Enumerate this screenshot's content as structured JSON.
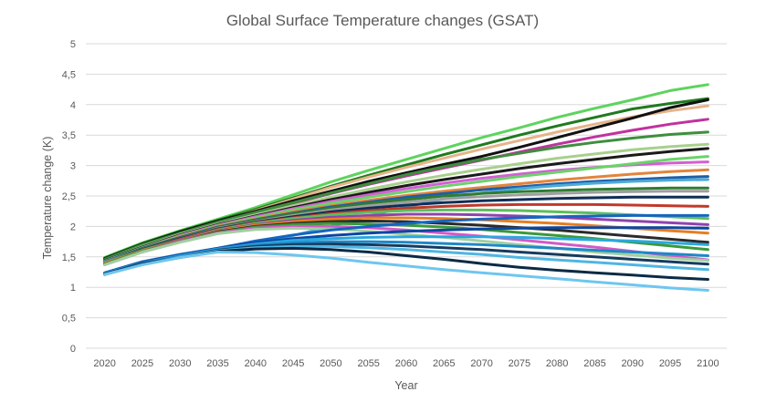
{
  "chart_data": {
    "type": "line",
    "title": "Global Surface Temperature changes (GSAT)",
    "xlabel": "Year",
    "ylabel": "Temperature change (K)",
    "x": [
      "2020",
      "2025",
      "2030",
      "2035",
      "2040",
      "2045",
      "2050",
      "2055",
      "2060",
      "2065",
      "2070",
      "2075",
      "2080",
      "2085",
      "2090",
      "2095",
      "2100"
    ],
    "yticks": [
      "0",
      "0,5",
      "1",
      "1,5",
      "2",
      "2,5",
      "3",
      "3,5",
      "4",
      "4,5",
      "5"
    ],
    "ylim": [
      0,
      5
    ],
    "grid": true,
    "legend": "none",
    "series": [
      {
        "color": "#5ed35e",
        "values": [
          1.49,
          1.73,
          1.93,
          2.12,
          2.31,
          2.52,
          2.73,
          2.92,
          3.1,
          3.28,
          3.46,
          3.62,
          3.79,
          3.94,
          4.08,
          4.23,
          4.33
        ]
      },
      {
        "color": "#1f7a1f",
        "values": [
          1.48,
          1.72,
          1.92,
          2.1,
          2.28,
          2.47,
          2.66,
          2.84,
          3.01,
          3.18,
          3.34,
          3.5,
          3.65,
          3.79,
          3.93,
          4.02,
          4.1
        ]
      },
      {
        "color": "#e6b48a",
        "values": [
          1.46,
          1.7,
          1.9,
          2.08,
          2.26,
          2.45,
          2.64,
          2.81,
          2.97,
          3.12,
          3.27,
          3.41,
          3.55,
          3.68,
          3.8,
          3.9,
          3.98
        ]
      },
      {
        "color": "#111111",
        "values": [
          1.47,
          1.71,
          1.91,
          2.09,
          2.25,
          2.42,
          2.58,
          2.74,
          2.88,
          3.02,
          3.15,
          3.3,
          3.46,
          3.62,
          3.78,
          3.95,
          4.08
        ]
      },
      {
        "color": "#c0329e",
        "values": [
          1.45,
          1.69,
          1.88,
          2.06,
          2.22,
          2.38,
          2.54,
          2.69,
          2.83,
          2.96,
          3.09,
          3.22,
          3.35,
          3.47,
          3.58,
          3.68,
          3.76
        ]
      },
      {
        "color": "#3e8e3e",
        "values": [
          1.46,
          1.7,
          1.89,
          2.07,
          2.23,
          2.39,
          2.55,
          2.7,
          2.85,
          2.98,
          3.1,
          3.2,
          3.3,
          3.38,
          3.45,
          3.51,
          3.55
        ]
      },
      {
        "color": "#a8d08d",
        "values": [
          1.44,
          1.67,
          1.87,
          2.04,
          2.19,
          2.34,
          2.48,
          2.61,
          2.73,
          2.84,
          2.94,
          3.03,
          3.12,
          3.19,
          3.26,
          3.31,
          3.35
        ]
      },
      {
        "color": "#1a1a1a",
        "values": [
          1.44,
          1.66,
          1.86,
          2.03,
          2.17,
          2.31,
          2.44,
          2.56,
          2.67,
          2.77,
          2.86,
          2.95,
          3.03,
          3.1,
          3.17,
          3.23,
          3.28
        ]
      },
      {
        "color": "#d45fd4",
        "values": [
          1.43,
          1.65,
          1.85,
          2.02,
          2.16,
          2.29,
          2.41,
          2.52,
          2.62,
          2.71,
          2.79,
          2.86,
          2.92,
          2.97,
          3.01,
          3.04,
          3.06
        ]
      },
      {
        "color": "#6ad36a",
        "values": [
          1.43,
          1.65,
          1.84,
          2.01,
          2.14,
          2.27,
          2.38,
          2.48,
          2.57,
          2.66,
          2.74,
          2.82,
          2.89,
          2.96,
          3.03,
          3.1,
          3.15
        ]
      },
      {
        "color": "#e3843c",
        "values": [
          1.42,
          1.64,
          1.83,
          2.0,
          2.12,
          2.24,
          2.34,
          2.43,
          2.51,
          2.58,
          2.64,
          2.7,
          2.76,
          2.81,
          2.86,
          2.9,
          2.93
        ]
      },
      {
        "color": "#1f5fa8",
        "values": [
          1.42,
          1.64,
          1.82,
          1.99,
          2.11,
          2.22,
          2.32,
          2.4,
          2.48,
          2.54,
          2.6,
          2.65,
          2.7,
          2.74,
          2.77,
          2.8,
          2.82
        ]
      },
      {
        "color": "#4dabd6",
        "values": [
          1.22,
          1.4,
          1.52,
          1.62,
          1.72,
          1.85,
          2.0,
          2.17,
          2.32,
          2.45,
          2.55,
          2.62,
          2.67,
          2.71,
          2.74,
          2.76,
          2.77
        ]
      },
      {
        "color": "#2e7d32",
        "values": [
          1.41,
          1.63,
          1.81,
          1.98,
          2.1,
          2.21,
          2.3,
          2.38,
          2.44,
          2.5,
          2.54,
          2.57,
          2.59,
          2.61,
          2.62,
          2.63,
          2.63
        ]
      },
      {
        "color": "#9e9e9e",
        "values": [
          1.41,
          1.62,
          1.8,
          1.97,
          2.08,
          2.18,
          2.27,
          2.34,
          2.4,
          2.45,
          2.49,
          2.52,
          2.54,
          2.56,
          2.57,
          2.58,
          2.58
        ]
      },
      {
        "color": "#0f2f57",
        "values": [
          1.4,
          1.62,
          1.8,
          1.96,
          2.07,
          2.16,
          2.24,
          2.3,
          2.35,
          2.39,
          2.42,
          2.44,
          2.46,
          2.47,
          2.48,
          2.48,
          2.48
        ]
      },
      {
        "color": "#c0392b",
        "values": [
          1.4,
          1.61,
          1.79,
          1.95,
          2.06,
          2.14,
          2.21,
          2.26,
          2.3,
          2.33,
          2.35,
          2.36,
          2.36,
          2.36,
          2.35,
          2.34,
          2.33
        ]
      },
      {
        "color": "#5dbe5d",
        "values": [
          1.4,
          1.61,
          1.78,
          1.94,
          2.05,
          2.13,
          2.19,
          2.23,
          2.26,
          2.27,
          2.27,
          2.26,
          2.24,
          2.22,
          2.19,
          2.16,
          2.13
        ]
      },
      {
        "color": "#8e44ad",
        "values": [
          1.39,
          1.6,
          1.78,
          1.93,
          2.03,
          2.1,
          2.15,
          2.18,
          2.2,
          2.2,
          2.19,
          2.17,
          2.15,
          2.12,
          2.09,
          2.06,
          2.03
        ]
      },
      {
        "color": "#e67e22",
        "values": [
          1.39,
          1.6,
          1.77,
          1.92,
          2.02,
          2.08,
          2.12,
          2.14,
          2.14,
          2.13,
          2.11,
          2.08,
          2.05,
          2.01,
          1.97,
          1.93,
          1.89
        ]
      },
      {
        "color": "#2b2b2b",
        "values": [
          1.38,
          1.59,
          1.76,
          1.91,
          2.0,
          2.05,
          2.08,
          2.09,
          2.08,
          2.05,
          2.02,
          1.98,
          1.94,
          1.89,
          1.84,
          1.79,
          1.74
        ]
      },
      {
        "color": "#3a9a3a",
        "values": [
          1.38,
          1.59,
          1.76,
          1.9,
          1.99,
          2.03,
          2.05,
          2.04,
          2.02,
          1.99,
          1.95,
          1.9,
          1.85,
          1.8,
          1.74,
          1.68,
          1.62
        ]
      },
      {
        "color": "#d35ac8",
        "values": [
          1.37,
          1.58,
          1.75,
          1.89,
          1.97,
          2.0,
          2.0,
          1.98,
          1.94,
          1.89,
          1.84,
          1.78,
          1.72,
          1.66,
          1.59,
          1.52,
          1.45
        ]
      },
      {
        "color": "#a0d0a0",
        "values": [
          1.37,
          1.58,
          1.74,
          1.88,
          1.95,
          1.97,
          1.96,
          1.92,
          1.87,
          1.82,
          1.76,
          1.7,
          1.64,
          1.58,
          1.53,
          1.48,
          1.44
        ]
      },
      {
        "color": "#1565c0",
        "values": [
          1.24,
          1.42,
          1.54,
          1.64,
          1.76,
          1.86,
          1.94,
          2.0,
          2.05,
          2.09,
          2.12,
          2.14,
          2.16,
          2.17,
          2.18,
          2.18,
          2.18
        ]
      },
      {
        "color": "#0d47a1",
        "values": [
          1.23,
          1.41,
          1.53,
          1.64,
          1.73,
          1.8,
          1.85,
          1.89,
          1.92,
          1.94,
          1.96,
          1.97,
          1.98,
          1.98,
          1.98,
          1.98,
          1.97
        ]
      },
      {
        "color": "#29a8df",
        "values": [
          1.23,
          1.4,
          1.52,
          1.63,
          1.71,
          1.77,
          1.8,
          1.82,
          1.83,
          1.83,
          1.83,
          1.82,
          1.8,
          1.78,
          1.76,
          1.73,
          1.7
        ]
      },
      {
        "color": "#1e88c8",
        "values": [
          1.22,
          1.39,
          1.51,
          1.62,
          1.69,
          1.73,
          1.75,
          1.75,
          1.74,
          1.72,
          1.7,
          1.67,
          1.64,
          1.61,
          1.58,
          1.55,
          1.52
        ]
      },
      {
        "color": "#163b5e",
        "values": [
          1.22,
          1.39,
          1.5,
          1.61,
          1.67,
          1.7,
          1.71,
          1.7,
          1.68,
          1.65,
          1.62,
          1.58,
          1.54,
          1.5,
          1.46,
          1.42,
          1.38
        ]
      },
      {
        "color": "#4fb6e3",
        "values": [
          1.21,
          1.38,
          1.5,
          1.6,
          1.65,
          1.67,
          1.67,
          1.65,
          1.62,
          1.58,
          1.54,
          1.49,
          1.45,
          1.41,
          1.37,
          1.33,
          1.29
        ]
      },
      {
        "color": "#0b2a45",
        "values": [
          1.21,
          1.38,
          1.49,
          1.59,
          1.63,
          1.64,
          1.62,
          1.58,
          1.52,
          1.46,
          1.39,
          1.33,
          1.28,
          1.24,
          1.2,
          1.16,
          1.13
        ]
      },
      {
        "color": "#6ec6f0",
        "values": [
          1.21,
          1.37,
          1.49,
          1.58,
          1.57,
          1.53,
          1.48,
          1.41,
          1.35,
          1.29,
          1.24,
          1.19,
          1.14,
          1.09,
          1.04,
          0.99,
          0.95
        ]
      }
    ]
  }
}
